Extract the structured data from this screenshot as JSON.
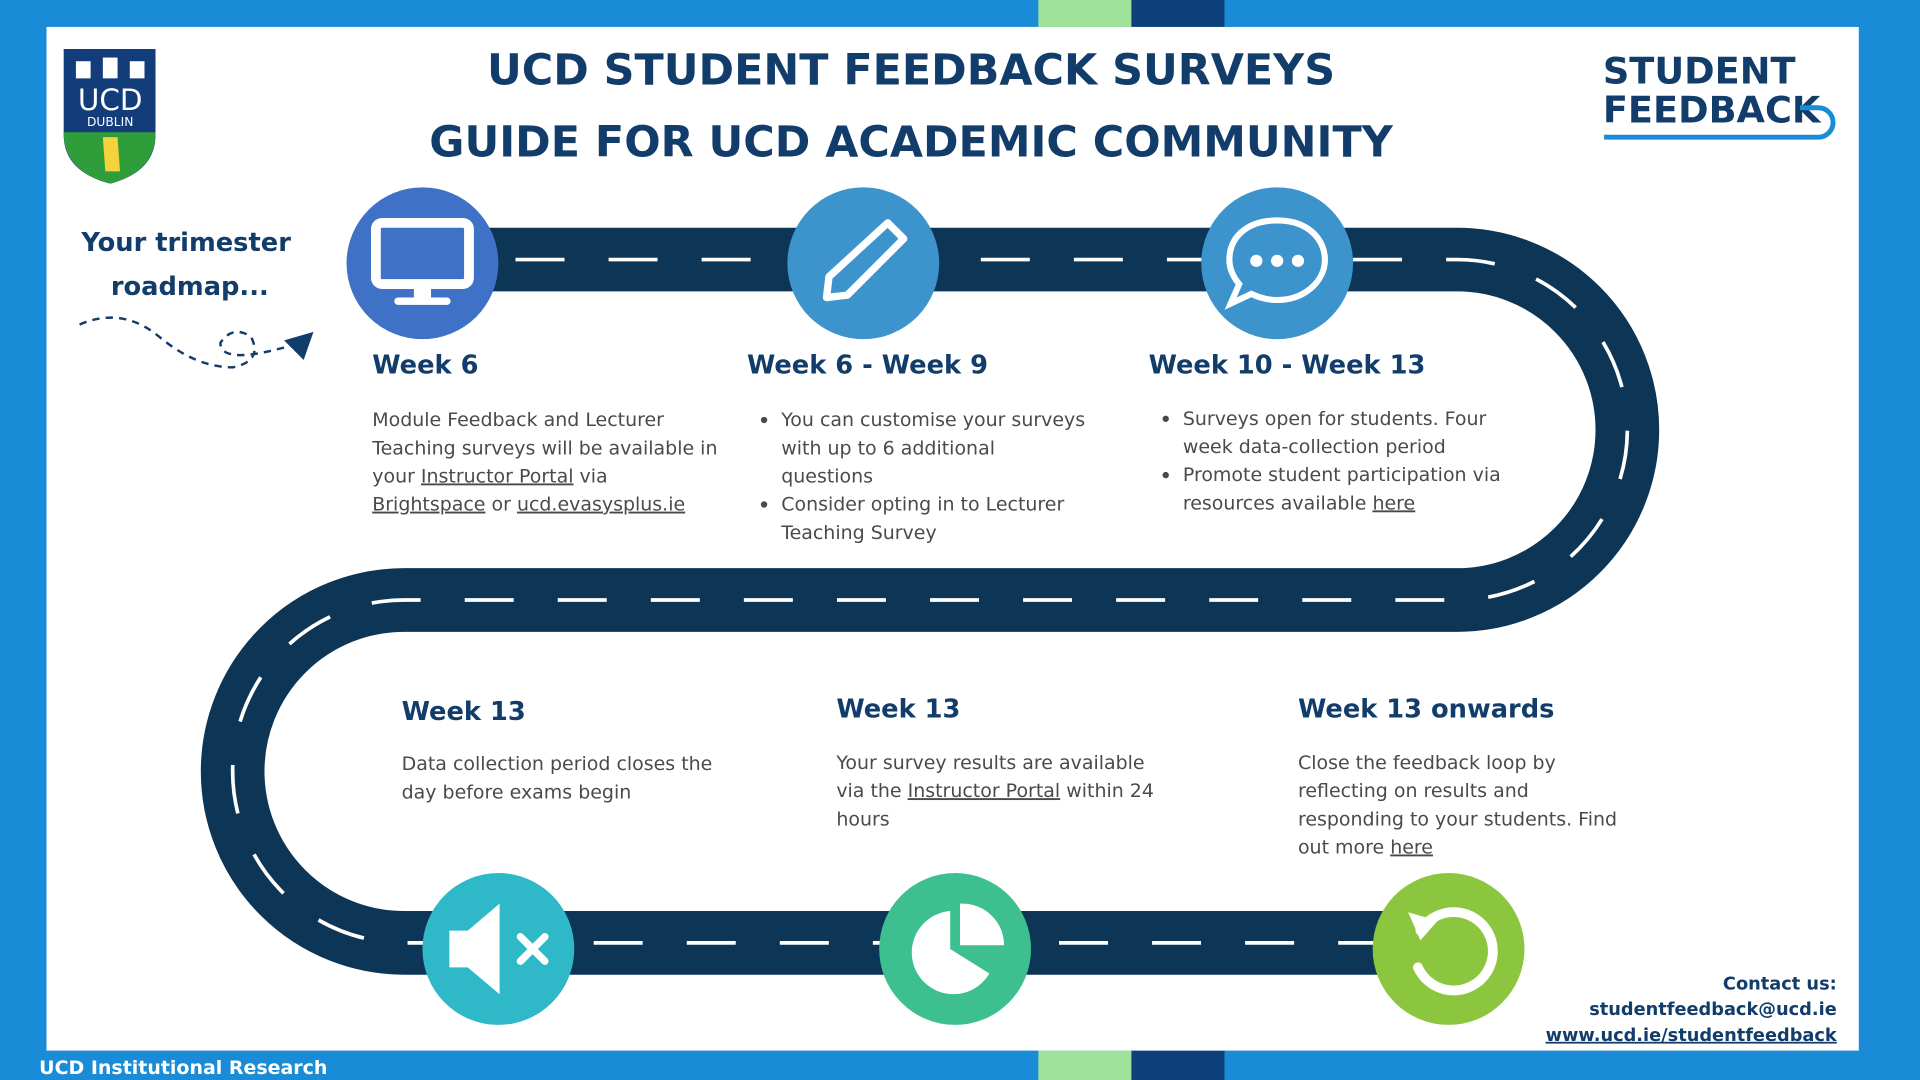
{
  "header": {
    "title_line1": "UCD STUDENT FEEDBACK SURVEYS",
    "title_line2": "GUIDE FOR UCD ACADEMIC COMMUNITY",
    "logo_line1": "UCD",
    "logo_line2": "DUBLIN",
    "brand_line1": "STUDENT",
    "brand_line2": "FEEDBACK"
  },
  "intro": [
    "Your trimester",
    "roadmap..."
  ],
  "steps": [
    {
      "heading": "Week 6",
      "bullets": false,
      "items": [
        [
          [
            "Module Feedback and Lecturer"
          ],
          [
            "Teaching surveys will be available in"
          ],
          [
            "your ",
            {
              "text": "Instructor Portal",
              "underline": true
            },
            " via"
          ],
          [
            {
              "text": "Brightspace",
              "underline": true
            },
            " or ",
            {
              "text": "ucd.evasysplus.ie",
              "underline": true
            }
          ]
        ]
      ]
    },
    {
      "heading": "Week 6 - Week 9",
      "bullets": true,
      "items": [
        [
          [
            "You can customise your surveys"
          ],
          [
            "with up to 6 additional"
          ],
          [
            "questions"
          ]
        ],
        [
          [
            "Consider opting in to Lecturer"
          ],
          [
            "Teaching Survey"
          ]
        ]
      ]
    },
    {
      "heading": "Week 10 - Week 13",
      "bullets": true,
      "items": [
        [
          [
            "Surveys open for students. Four"
          ],
          [
            "week data-collection period"
          ]
        ],
        [
          [
            "Promote student participation via"
          ],
          [
            "resources available ",
            {
              "text": "here",
              "underline": true
            }
          ]
        ]
      ]
    },
    {
      "heading": "Week 13",
      "bullets": false,
      "items": [
        [
          [
            "Data collection period closes the"
          ],
          [
            "day before exams begin"
          ]
        ]
      ]
    },
    {
      "heading": "Week 13",
      "bullets": false,
      "items": [
        [
          [
            "Your survey results are available"
          ],
          [
            "via the ",
            {
              "text": "Instructor Portal",
              "underline": true
            },
            " within 24"
          ],
          [
            "hours"
          ]
        ]
      ]
    },
    {
      "heading": "Week 13 onwards",
      "bullets": false,
      "items": [
        [
          [
            "Close the feedback loop by"
          ],
          [
            "reflecting on results and"
          ],
          [
            "responding to your students. Find"
          ],
          [
            "out more ",
            {
              "text": "here",
              "underline": true
            }
          ]
        ]
      ]
    }
  ],
  "contact": {
    "label": "Contact us:",
    "email": "studentfeedback@ucd.ie",
    "website": "www.ucd.ie/studentfeedback"
  },
  "footer": "UCD Institutional Research"
}
